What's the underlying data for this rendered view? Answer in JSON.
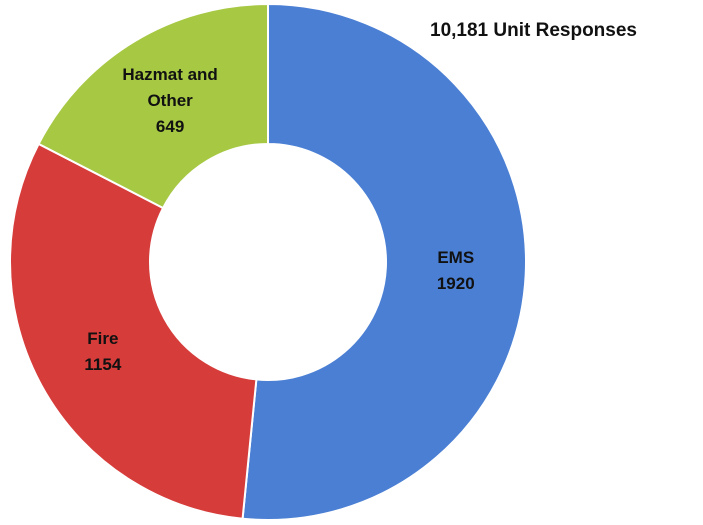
{
  "chart_data": {
    "type": "donut",
    "title": "10,181 Unit Responses",
    "categories": [
      "EMS",
      "Fire",
      "Hazmat and Other"
    ],
    "values": [
      1920,
      1154,
      649
    ],
    "colors": [
      "#4a7fd4",
      "#d63c3a",
      "#a6c843"
    ]
  }
}
